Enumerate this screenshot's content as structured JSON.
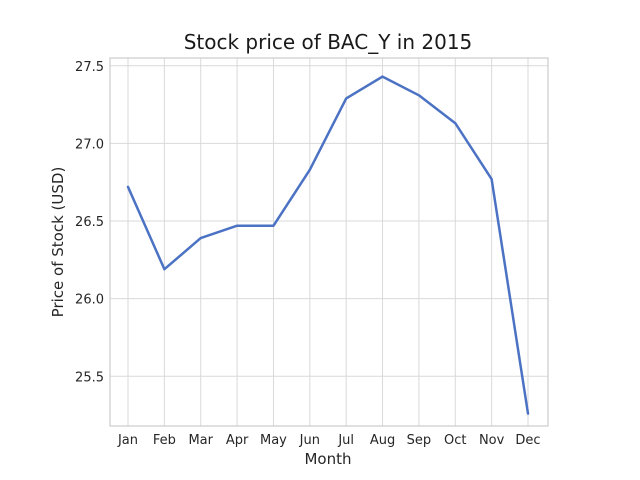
{
  "chart_data": {
    "type": "line",
    "title": "Stock price of BAC_Y in 2015",
    "xlabel": "Month",
    "ylabel": "Price of Stock (USD)",
    "categories": [
      "Jan",
      "Feb",
      "Mar",
      "Apr",
      "May",
      "Jun",
      "Jul",
      "Aug",
      "Sep",
      "Oct",
      "Nov",
      "Dec"
    ],
    "series": [
      {
        "values": [
          26.72,
          26.19,
          26.39,
          26.47,
          26.47,
          26.83,
          27.29,
          27.43,
          27.31,
          27.13,
          26.77,
          25.26
        ],
        "color": "#4c72c4"
      }
    ],
    "ylim": [
      25.18,
      27.55
    ],
    "yticks": [
      25.5,
      26.0,
      26.5,
      27.0,
      27.5
    ],
    "ytick_labels": [
      "25.5",
      "26.0",
      "26.5",
      "27.0",
      "27.5"
    ],
    "grid": true,
    "legend": false
  }
}
